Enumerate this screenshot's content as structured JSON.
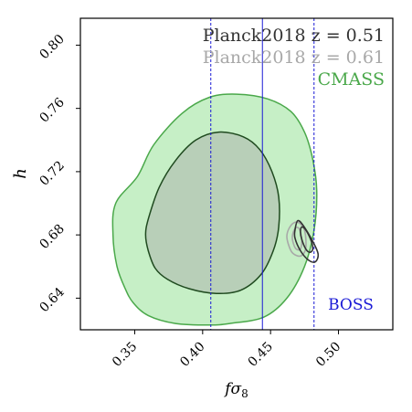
{
  "chart_data": {
    "type": "contour",
    "xlabel": "fσ8",
    "ylabel": "h",
    "xlim": [
      0.31,
      0.54
    ],
    "ylim": [
      0.62,
      0.817
    ],
    "x_ticks": [
      0.35,
      0.4,
      0.45,
      0.5
    ],
    "x_tick_labels": [
      "0.35",
      "0.40",
      "0.45",
      "0.50"
    ],
    "y_ticks": [
      0.64,
      0.68,
      0.72,
      0.76,
      0.8
    ],
    "y_tick_labels": [
      "0.64",
      "0.68",
      "0.72",
      "0.76",
      "0.80"
    ],
    "legend": {
      "placement": "top-right",
      "entries": [
        {
          "label": "Planck2018 z = 0.51",
          "color": "#333333"
        },
        {
          "label": "Planck2018 z = 0.61",
          "color": "#a8a8a8"
        },
        {
          "label": "CMASS",
          "color": "#4aa84a"
        }
      ]
    },
    "boss": {
      "label": "BOSS",
      "color": "#1a1ad6",
      "center": 0.444,
      "lower": 0.406,
      "upper": 0.482
    },
    "cmass": {
      "color": "#4aa84a",
      "outer_fill": "#c6efc6",
      "inner_fill": "#b8cfb8",
      "inner_stroke": "#1f4a1f",
      "outer_contour": [
        [
          0.349,
          0.637
        ],
        [
          0.36,
          0.629
        ],
        [
          0.38,
          0.624
        ],
        [
          0.405,
          0.623
        ],
        [
          0.42,
          0.624
        ],
        [
          0.445,
          0.628
        ],
        [
          0.462,
          0.64
        ],
        [
          0.475,
          0.66
        ],
        [
          0.482,
          0.683
        ],
        [
          0.484,
          0.708
        ],
        [
          0.481,
          0.728
        ],
        [
          0.475,
          0.745
        ],
        [
          0.465,
          0.758
        ],
        [
          0.448,
          0.766
        ],
        [
          0.425,
          0.769
        ],
        [
          0.405,
          0.767
        ],
        [
          0.385,
          0.757
        ],
        [
          0.364,
          0.737
        ],
        [
          0.352,
          0.717
        ],
        [
          0.336,
          0.7
        ],
        [
          0.334,
          0.68
        ],
        [
          0.337,
          0.66
        ],
        [
          0.343,
          0.646
        ],
        [
          0.349,
          0.637
        ]
      ],
      "inner_contour": [
        [
          0.36,
          0.67
        ],
        [
          0.365,
          0.659
        ],
        [
          0.374,
          0.652
        ],
        [
          0.39,
          0.646
        ],
        [
          0.41,
          0.643
        ],
        [
          0.428,
          0.645
        ],
        [
          0.443,
          0.655
        ],
        [
          0.452,
          0.67
        ],
        [
          0.456,
          0.685
        ],
        [
          0.456,
          0.704
        ],
        [
          0.451,
          0.72
        ],
        [
          0.442,
          0.734
        ],
        [
          0.43,
          0.742
        ],
        [
          0.412,
          0.745
        ],
        [
          0.395,
          0.74
        ],
        [
          0.38,
          0.727
        ],
        [
          0.368,
          0.71
        ],
        [
          0.36,
          0.69
        ],
        [
          0.358,
          0.68
        ],
        [
          0.36,
          0.67
        ]
      ]
    },
    "planck_051": {
      "color": "#333333",
      "contours": [
        [
          [
            0.468,
            0.683
          ],
          [
            0.47,
            0.689
          ],
          [
            0.474,
            0.686
          ],
          [
            0.481,
            0.676
          ],
          [
            0.485,
            0.668
          ],
          [
            0.483,
            0.663
          ],
          [
            0.478,
            0.664
          ],
          [
            0.472,
            0.67
          ],
          [
            0.468,
            0.678
          ],
          [
            0.468,
            0.683
          ]
        ],
        [
          [
            0.472,
            0.682
          ],
          [
            0.473,
            0.685
          ],
          [
            0.476,
            0.683
          ],
          [
            0.48,
            0.676
          ],
          [
            0.481,
            0.671
          ],
          [
            0.479,
            0.669
          ],
          [
            0.476,
            0.671
          ],
          [
            0.473,
            0.677
          ],
          [
            0.472,
            0.682
          ]
        ]
      ]
    },
    "planck_061": {
      "color": "#a8a8a8",
      "contours": [
        [
          [
            0.462,
            0.679
          ],
          [
            0.465,
            0.686
          ],
          [
            0.47,
            0.688
          ],
          [
            0.475,
            0.683
          ],
          [
            0.476,
            0.672
          ],
          [
            0.473,
            0.667
          ],
          [
            0.469,
            0.667
          ],
          [
            0.465,
            0.67
          ],
          [
            0.462,
            0.679
          ]
        ],
        [
          [
            0.466,
            0.679
          ],
          [
            0.468,
            0.684
          ],
          [
            0.471,
            0.684
          ],
          [
            0.473,
            0.677
          ],
          [
            0.472,
            0.671
          ],
          [
            0.469,
            0.671
          ],
          [
            0.467,
            0.674
          ],
          [
            0.466,
            0.679
          ]
        ]
      ]
    }
  }
}
